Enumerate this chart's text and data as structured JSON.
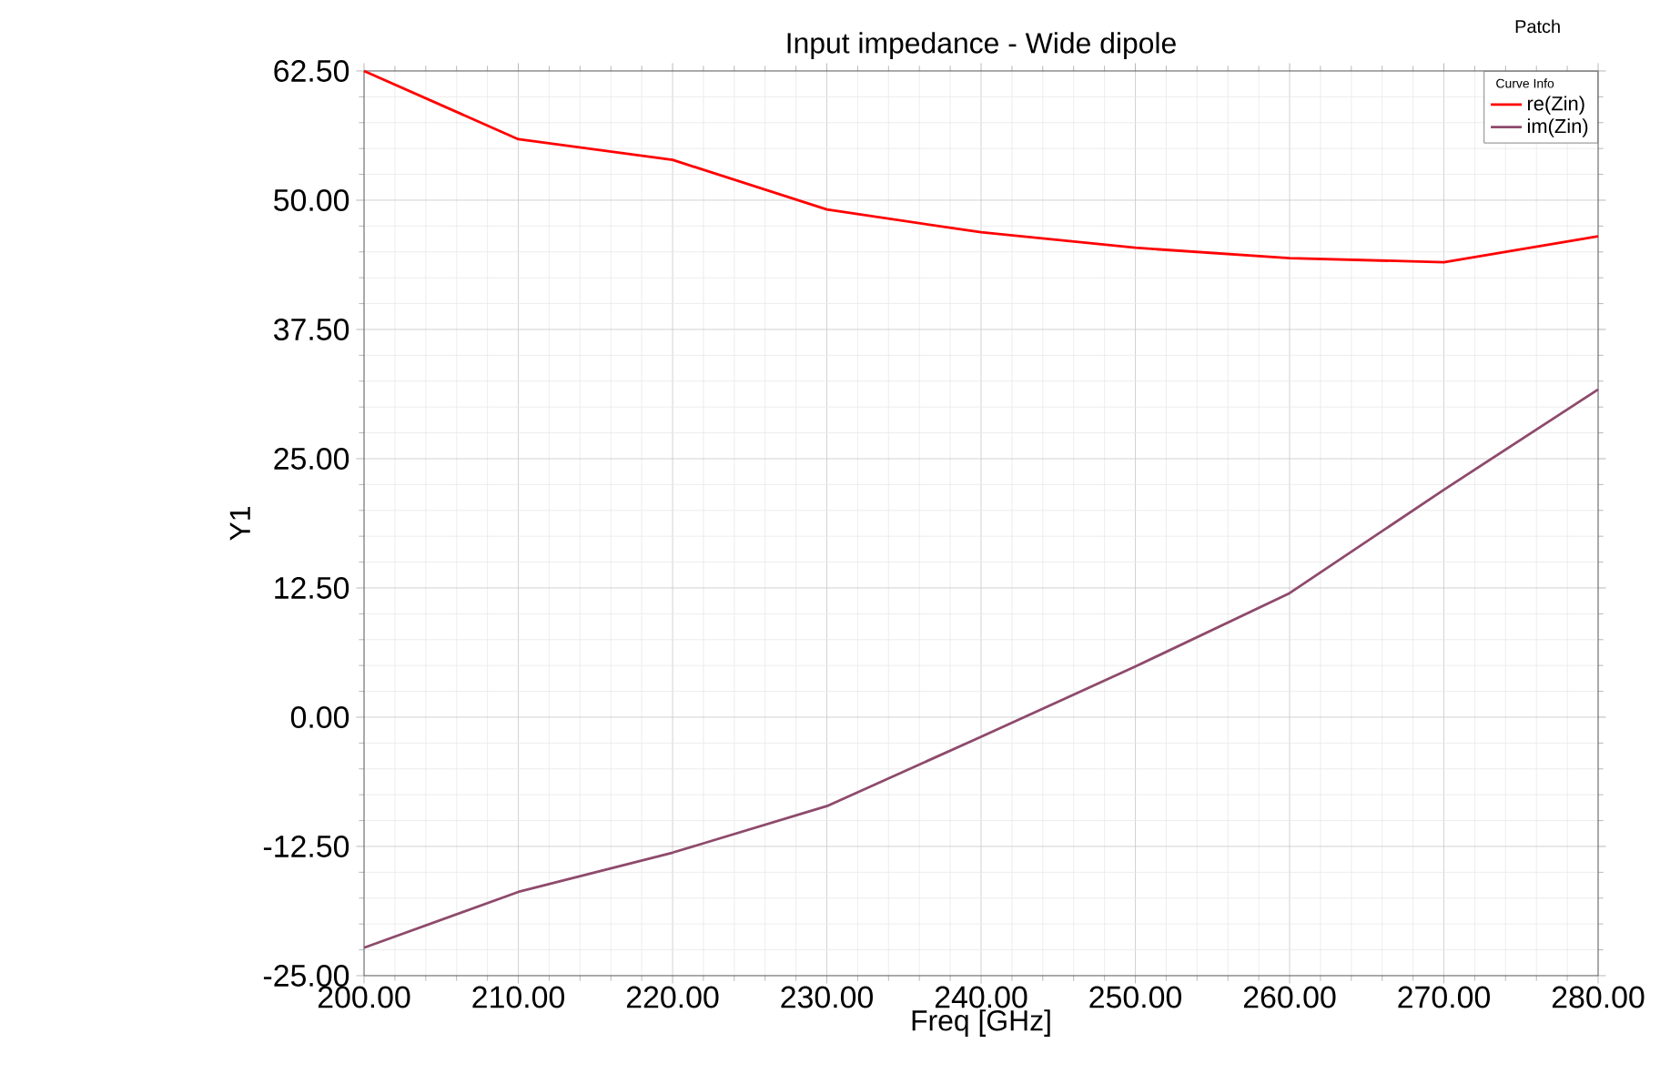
{
  "chart_data": {
    "type": "line",
    "title": "Input impedance - Wide dipole",
    "xlabel": "Freq [GHz]",
    "ylabel": "Y1",
    "annotations": [
      "Patch"
    ],
    "legend_title": "Curve Info",
    "x": [
      200,
      210,
      220,
      230,
      240,
      250,
      260,
      270,
      280
    ],
    "series": [
      {
        "name": "re(Zin)",
        "color": "#ff0000",
        "values": [
          62.5,
          55.9,
          53.9,
          49.1,
          46.9,
          45.4,
          44.4,
          44.0,
          46.5
        ]
      },
      {
        "name": "im(Zin)",
        "color": "#8e4a6c",
        "values": [
          -22.3,
          -16.9,
          -13.1,
          -8.6,
          -1.9,
          4.9,
          12.0,
          22.0,
          31.7
        ]
      }
    ],
    "xlim": [
      200,
      280
    ],
    "ylim": [
      -25,
      62.5
    ],
    "xticks": [
      {
        "value": 200,
        "label": "200.00"
      },
      {
        "value": 210,
        "label": "210.00"
      },
      {
        "value": 220,
        "label": "220.00"
      },
      {
        "value": 230,
        "label": "230.00"
      },
      {
        "value": 240,
        "label": "240.00"
      },
      {
        "value": 250,
        "label": "250.00"
      },
      {
        "value": 260,
        "label": "260.00"
      },
      {
        "value": 270,
        "label": "270.00"
      },
      {
        "value": 280,
        "label": "280.00"
      }
    ],
    "yticks": [
      {
        "value": -25,
        "label": "-25.00"
      },
      {
        "value": -12.5,
        "label": "-12.50"
      },
      {
        "value": 0,
        "label": "0.00"
      },
      {
        "value": 12.5,
        "label": "12.50"
      },
      {
        "value": 25,
        "label": "25.00"
      },
      {
        "value": 37.5,
        "label": "37.50"
      },
      {
        "value": 50,
        "label": "50.00"
      },
      {
        "value": 62.5,
        "label": "62.50"
      }
    ],
    "grid": true,
    "legend": "top right",
    "marker": "none",
    "line_style": "solid"
  }
}
